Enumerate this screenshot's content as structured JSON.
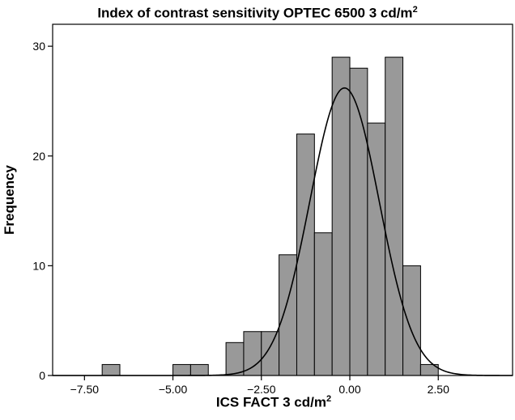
{
  "chart_data": {
    "type": "bar",
    "title_main": "Index of contrast sensitivity OPTEC 6500 3 cd/m",
    "title_sup": "2",
    "xlabel_main": "ICS FACT 3 cd/m",
    "xlabel_sup": "2",
    "ylabel": "Frequency",
    "bin_width": 0.5,
    "bins": [
      {
        "start": -7.0,
        "end": -6.5,
        "count": 1
      },
      {
        "start": -5.0,
        "end": -4.5,
        "count": 1
      },
      {
        "start": -4.5,
        "end": -4.0,
        "count": 1
      },
      {
        "start": -3.5,
        "end": -3.0,
        "count": 3
      },
      {
        "start": -3.0,
        "end": -2.5,
        "count": 4
      },
      {
        "start": -2.5,
        "end": -2.0,
        "count": 4
      },
      {
        "start": -2.0,
        "end": -1.5,
        "count": 11
      },
      {
        "start": -1.5,
        "end": -1.0,
        "count": 22
      },
      {
        "start": -1.0,
        "end": -0.5,
        "count": 13
      },
      {
        "start": -0.5,
        "end": 0.0,
        "count": 29
      },
      {
        "start": 0.0,
        "end": 0.5,
        "count": 28
      },
      {
        "start": 0.5,
        "end": 1.0,
        "count": 23
      },
      {
        "start": 1.0,
        "end": 1.5,
        "count": 29
      },
      {
        "start": 1.5,
        "end": 2.0,
        "count": 10
      },
      {
        "start": 2.0,
        "end": 2.5,
        "count": 1
      }
    ],
    "normal_curve": {
      "mean": -0.15,
      "sd": 0.98,
      "peak": 26.2
    },
    "xlim": [
      -8.4,
      4.6
    ],
    "ylim": [
      0,
      32
    ],
    "xticks": [
      -7.5,
      -5.0,
      -2.5,
      0.0,
      2.5
    ],
    "xtick_labels": [
      "−7.50",
      "−5.00",
      "−2.50",
      "0.00",
      "2.50"
    ],
    "yticks": [
      0,
      10,
      20,
      30
    ],
    "ytick_labels": [
      "0",
      "10",
      "20",
      "30"
    ],
    "bar_color": "#999999",
    "bar_edge": "#000000",
    "curve_color": "#000000"
  }
}
